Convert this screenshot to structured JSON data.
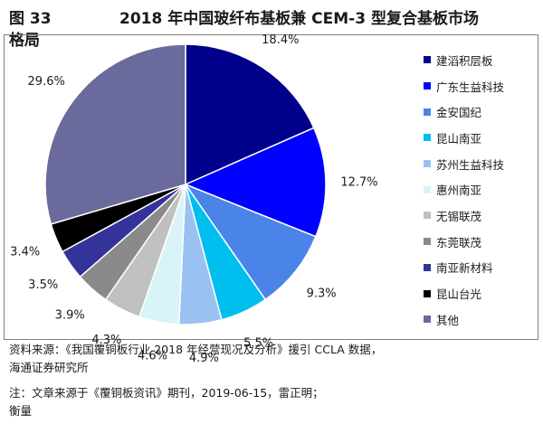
{
  "figure": {
    "label": "图 33",
    "title": "2018 年中国玻纤布基板兼 CEM-3 型复合基板市场",
    "title_cont": "格局"
  },
  "chart_data": {
    "type": "pie",
    "title": "2018 年中国玻纤布基板兼 CEM-3 型复合基板市场格局",
    "categories": [
      "建滔积层板",
      "广东生益科技",
      "金安国纪",
      "昆山南亚",
      "苏州生益科技",
      "惠州南亚",
      "无锡联茂",
      "东莞联茂",
      "南亚新材料",
      "昆山台光",
      "其他"
    ],
    "values": [
      18.4,
      12.7,
      9.3,
      5.5,
      4.9,
      4.6,
      4.3,
      3.9,
      3.5,
      3.4,
      29.6
    ],
    "labels": [
      "18.4%",
      "12.7%",
      "9.3%",
      "5.5%",
      "4.9%",
      "4.6%",
      "4.3%",
      "3.9%",
      "3.5%",
      "3.4%",
      "29.6%"
    ],
    "colors": [
      "#00008B",
      "#0000FF",
      "#4A84E8",
      "#00BFEF",
      "#99C2F2",
      "#D9F4F8",
      "#C0C0C0",
      "#8A8A8A",
      "#333399",
      "#000000",
      "#6A6A9C"
    ],
    "legend_position": "right",
    "start_angle_deg": 0,
    "direction": "clockwise"
  },
  "footer": {
    "source_line1": "资料来源：《我国覆铜板行业 2018 年经营现况及分析》援引 CCLA 数据，",
    "source_line2": "海通证券研究所",
    "note_line1": "注：文章来源于《覆铜板资讯》期刊，2019-06-15，雷正明；",
    "note_line2": "衡量"
  }
}
